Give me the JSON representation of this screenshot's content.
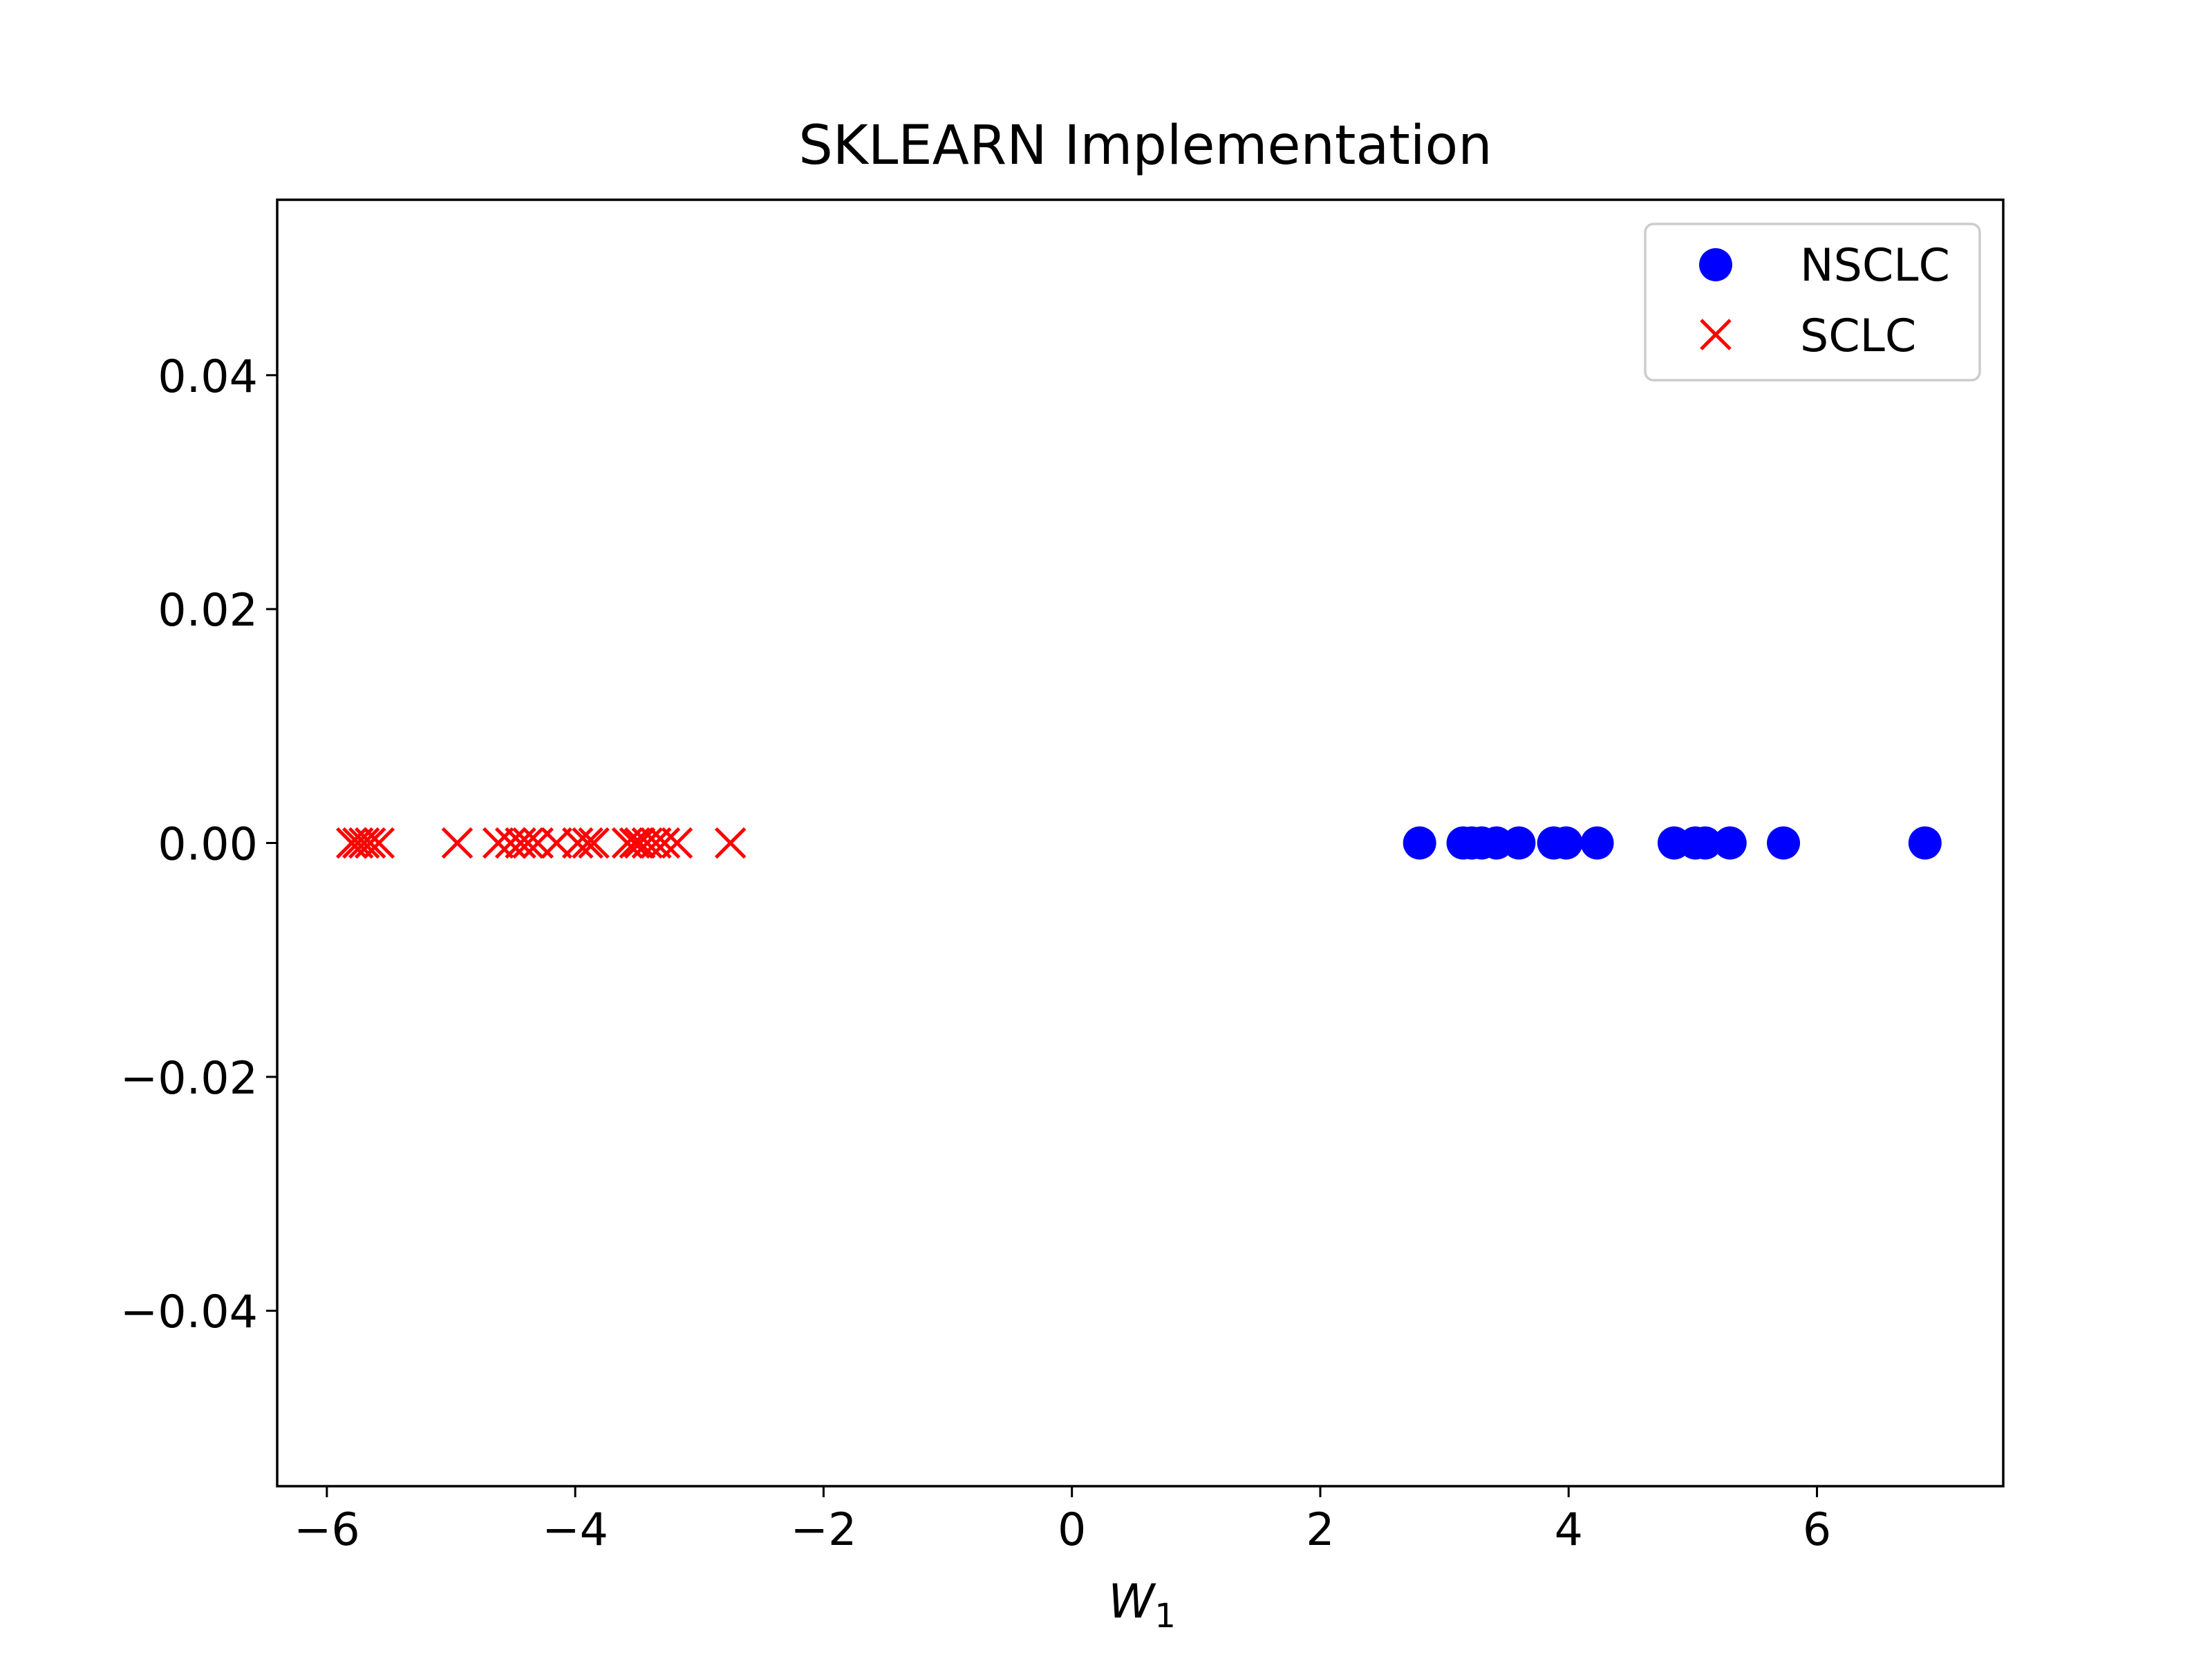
{
  "chart_data": {
    "type": "scatter",
    "title": "SKLEARN Implementation",
    "xlabel": "W",
    "xlabel_subscript": "1",
    "ylabel": "",
    "xlim": [
      -6.4,
      7.5
    ],
    "ylim": [
      -0.055,
      0.055
    ],
    "xticks": [
      -6,
      -4,
      -2,
      0,
      2,
      4,
      6
    ],
    "xtick_labels": [
      "−6",
      "−4",
      "−2",
      "0",
      "2",
      "4",
      "6"
    ],
    "yticks": [
      0.04,
      0.02,
      0.0,
      -0.02,
      -0.04
    ],
    "ytick_labels": [
      "0.04",
      "0.02",
      "0.00",
      "−0.02",
      "−0.04"
    ],
    "grid": false,
    "legend_position": "top-right",
    "series": [
      {
        "name": "NSCLC",
        "marker": "circle",
        "color": "#0000ff",
        "x": [
          2.8,
          3.15,
          3.22,
          3.3,
          3.42,
          3.6,
          3.88,
          3.98,
          4.23,
          4.85,
          5.02,
          5.1,
          5.3,
          5.73,
          6.87
        ],
        "y": [
          0,
          0,
          0,
          0,
          0,
          0,
          0,
          0,
          0,
          0,
          0,
          0,
          0,
          0,
          0
        ]
      },
      {
        "name": "SCLC",
        "marker": "x",
        "color": "#ff0000",
        "x": [
          -5.8,
          -5.75,
          -5.7,
          -5.65,
          -5.58,
          -4.95,
          -4.62,
          -4.52,
          -4.44,
          -4.38,
          -4.3,
          -4.15,
          -3.98,
          -3.9,
          -3.85,
          -3.58,
          -3.52,
          -3.48,
          -3.42,
          -3.35,
          -3.28,
          -3.18,
          -2.75
        ],
        "y": [
          0,
          0,
          0,
          0,
          0,
          0,
          0,
          0,
          0,
          0,
          0,
          0,
          0,
          0,
          0,
          0,
          0,
          0,
          0,
          0,
          0,
          0,
          0
        ]
      }
    ]
  }
}
